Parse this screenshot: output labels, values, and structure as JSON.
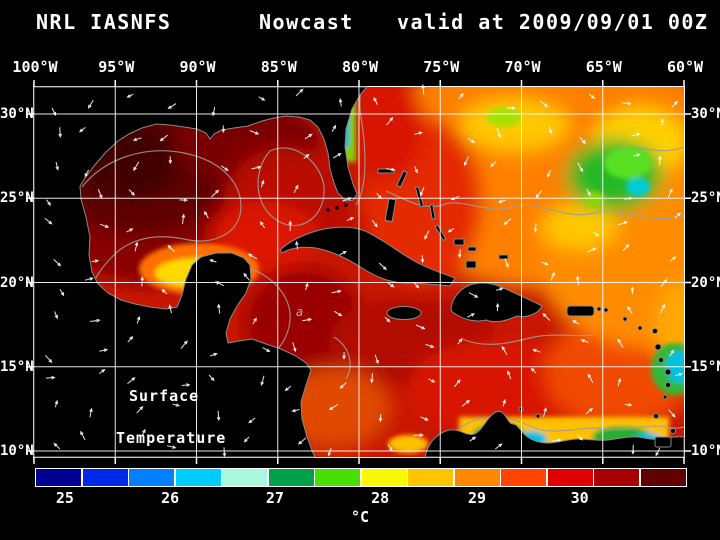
{
  "title": {
    "left": "NRL IASNFS",
    "center": "Nowcast",
    "right": "valid at 2009/09/01 00Z"
  },
  "axes": {
    "lon_labels": [
      "100°W",
      "95°W",
      "90°W",
      "85°W",
      "80°W",
      "75°W",
      "70°W",
      "65°W",
      "60°W"
    ],
    "lat_labels": [
      "30°N",
      "25°N",
      "20°N",
      "15°N",
      "10°N"
    ]
  },
  "map": {
    "annotation_line1": "Surface",
    "annotation_line2": "Temperature",
    "contour_label": "a"
  },
  "colorbar": {
    "unit": "°C",
    "ticks": [
      {
        "label": "25",
        "pos": 0.046
      },
      {
        "label": "26",
        "pos": 0.208
      },
      {
        "label": "27",
        "pos": 0.369
      },
      {
        "label": "28",
        "pos": 0.531
      },
      {
        "label": "29",
        "pos": 0.68
      },
      {
        "label": "30",
        "pos": 0.838
      }
    ],
    "segment_colors": [
      "#000090",
      "#0028e8",
      "#0080ff",
      "#00ccff",
      "#a8f8e0",
      "#00a048",
      "#48e000",
      "#f8f800",
      "#ffc400",
      "#ff8800",
      "#ff4400",
      "#e00000",
      "#a80000",
      "#600000"
    ]
  },
  "colors": {
    "background": "#000000",
    "frame": "#ffffff",
    "grid": "#ffffff",
    "land": "#000000",
    "coast_outline": "#8a8a8a",
    "contour": "#9aa0a0",
    "arrow": "#ffffff",
    "text": "#ffffff"
  }
}
